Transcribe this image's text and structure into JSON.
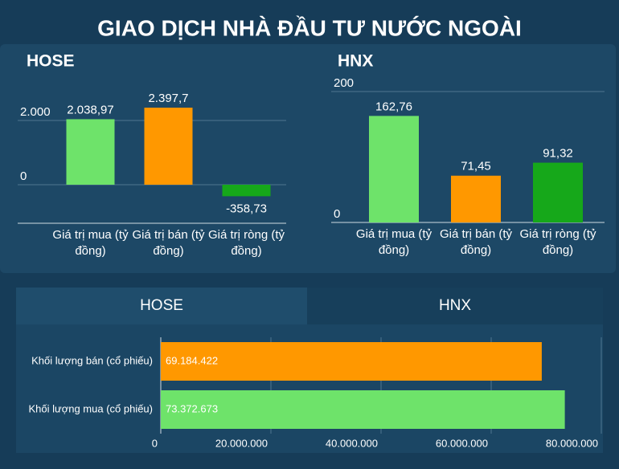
{
  "title": "GIAO DỊCH NHÀ ĐẦU TƯ NƯỚC NGOÀI",
  "tabs": [
    "HOSE",
    "HNX"
  ],
  "chart_data": [
    {
      "type": "bar",
      "title": "HOSE",
      "categories": [
        "Giá trị mua (tỷ đồng)",
        "Giá trị bán (tỷ đồng)",
        "Giá trị ròng (tỷ đồng)"
      ],
      "values": [
        2038.97,
        2397.7,
        -358.73
      ],
      "value_labels": [
        "2.038,97",
        "2.397,7",
        "-358,73"
      ],
      "colors": [
        "#6ee36a",
        "#ff9800",
        "#16a81a"
      ],
      "ylim": [
        -1200,
        3000
      ],
      "yticks": [
        0,
        {
          "value": 2000,
          "label": "2.000"
        }
      ],
      "grid": true
    },
    {
      "type": "bar",
      "title": "HNX",
      "categories": [
        "Giá trị mua (tỷ đồng)",
        "Giá trị bán (tỷ đồng)",
        "Giá trị ròng (tỷ đồng)"
      ],
      "values": [
        162.76,
        71.45,
        91.32
      ],
      "value_labels": [
        "162,76",
        "71,45",
        "91,32"
      ],
      "colors": [
        "#6ee36a",
        "#ff9800",
        "#16a81a"
      ],
      "ylim": [
        0,
        200
      ],
      "yticks": [
        0,
        200
      ],
      "grid": true
    },
    {
      "type": "bar",
      "horizontal": true,
      "categories": [
        "Khối lượng bán (cổ phiếu)",
        "Khối lượng mua (cổ phiếu)"
      ],
      "values": [
        69184422,
        73372673
      ],
      "value_labels": [
        "69.184.422",
        "73.372.673"
      ],
      "colors": [
        "#ff9800",
        "#6ee36a"
      ],
      "xlim": [
        0,
        80000000
      ],
      "xticks": [
        0,
        {
          "value": 20000000,
          "label": "20.000.000"
        },
        {
          "value": 40000000,
          "label": "40.000.000"
        },
        {
          "value": 60000000,
          "label": "60.000.000"
        },
        {
          "value": 80000000,
          "label": "80.000.000"
        }
      ],
      "grid": true
    }
  ]
}
